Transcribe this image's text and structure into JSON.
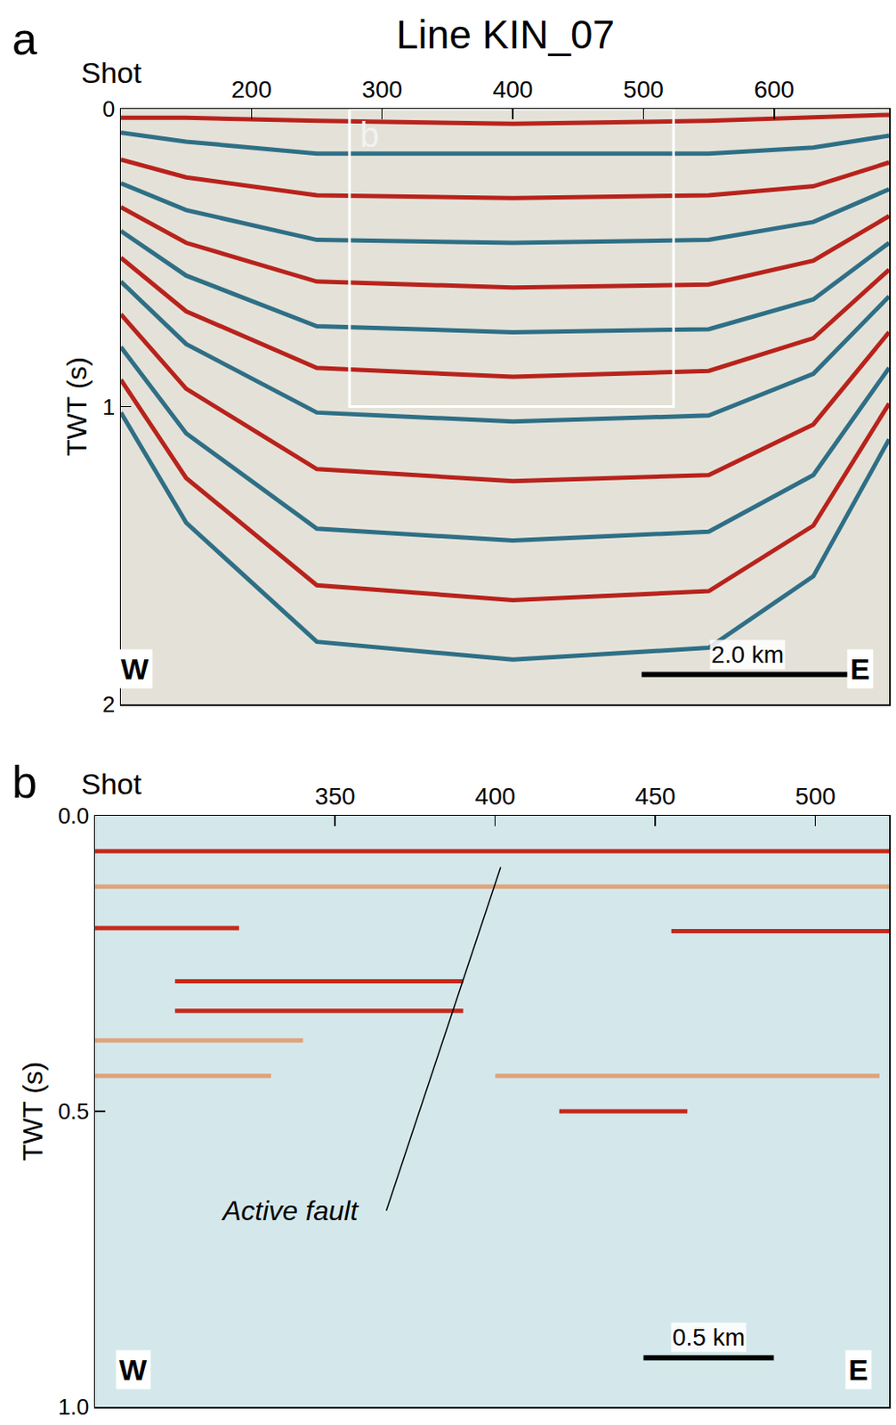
{
  "chart_data": [
    {
      "type": "line",
      "panel": "a",
      "title": "Line KIN_07",
      "x_label": "Shot",
      "y_label": "TWT (s)",
      "xlim": [
        100,
        688
      ],
      "xticks": [
        200,
        300,
        400,
        500,
        600
      ],
      "ylim": [
        0,
        2
      ],
      "yticks": [
        0,
        1,
        2
      ],
      "x": [
        100,
        150,
        250,
        400,
        550,
        630,
        688
      ],
      "series": [
        {
          "color": "#b8231c",
          "values": [
            0.03,
            0.03,
            0.04,
            0.05,
            0.04,
            0.03,
            0.02
          ]
        },
        {
          "color": "#2f6f86",
          "values": [
            0.08,
            0.11,
            0.15,
            0.15,
            0.15,
            0.13,
            0.09
          ]
        },
        {
          "color": "#b8231c",
          "values": [
            0.17,
            0.23,
            0.29,
            0.3,
            0.29,
            0.26,
            0.18
          ]
        },
        {
          "color": "#2f6f86",
          "values": [
            0.25,
            0.34,
            0.44,
            0.45,
            0.44,
            0.38,
            0.27
          ]
        },
        {
          "color": "#b8231c",
          "values": [
            0.33,
            0.45,
            0.58,
            0.6,
            0.59,
            0.51,
            0.36
          ]
        },
        {
          "color": "#2f6f86",
          "values": [
            0.41,
            0.56,
            0.73,
            0.75,
            0.74,
            0.64,
            0.45
          ]
        },
        {
          "color": "#b8231c",
          "values": [
            0.5,
            0.68,
            0.87,
            0.9,
            0.88,
            0.77,
            0.54
          ]
        },
        {
          "color": "#2f6f86",
          "values": [
            0.58,
            0.79,
            1.02,
            1.05,
            1.03,
            0.89,
            0.63
          ]
        },
        {
          "color": "#b8231c",
          "values": [
            0.69,
            0.94,
            1.21,
            1.25,
            1.23,
            1.06,
            0.75
          ]
        },
        {
          "color": "#2f6f86",
          "values": [
            0.8,
            1.09,
            1.41,
            1.45,
            1.42,
            1.23,
            0.87
          ]
        },
        {
          "color": "#b8231c",
          "values": [
            0.91,
            1.24,
            1.6,
            1.65,
            1.62,
            1.4,
            0.99
          ]
        },
        {
          "color": "#2f6f86",
          "values": [
            1.02,
            1.39,
            1.79,
            1.85,
            1.81,
            1.57,
            1.11
          ]
        }
      ],
      "inset": {
        "label": "b",
        "x": [
          275,
          523
        ],
        "y": [
          0,
          1.0
        ]
      },
      "scale_bar": {
        "label": "2.0 km",
        "x": [
          498.6,
          661
        ],
        "y": 1.9
      },
      "annotations": [
        {
          "text": "W",
          "x": 111,
          "y": 1.88
        },
        {
          "text": "E",
          "x": 666,
          "y": 1.88
        }
      ]
    },
    {
      "type": "line",
      "panel": "b",
      "x_label": "Shot",
      "y_label": "TWT (s)",
      "xlim": [
        275,
        523
      ],
      "xticks": [
        350,
        400,
        450,
        500
      ],
      "ylim": [
        0,
        1.0
      ],
      "yticks": [
        {
          "value": 0,
          "label": "0.0"
        },
        {
          "value": 0.5,
          "label": "0.5"
        },
        {
          "value": 1.0,
          "label": "1.0"
        }
      ],
      "series": [
        {
          "color": "#c42a1c",
          "x": [
            275,
            523
          ],
          "values": [
            0.06,
            0.06
          ]
        },
        {
          "color": "#e0a27a",
          "x": [
            275,
            523
          ],
          "values": [
            0.12,
            0.12
          ]
        },
        {
          "color": "#c42a1c",
          "x": [
            275,
            320
          ],
          "values": [
            0.19,
            0.19
          ]
        },
        {
          "color": "#c42a1c",
          "x": [
            455,
            523
          ],
          "values": [
            0.195,
            0.195
          ]
        },
        {
          "color": "#c42a1c",
          "x": [
            300,
            390
          ],
          "values": [
            0.28,
            0.28
          ]
        },
        {
          "color": "#c42a1c",
          "x": [
            300,
            390
          ],
          "values": [
            0.33,
            0.33
          ]
        },
        {
          "color": "#e0a27a",
          "x": [
            275,
            340
          ],
          "values": [
            0.38,
            0.38
          ]
        },
        {
          "color": "#e0a27a",
          "x": [
            275,
            330
          ],
          "values": [
            0.44,
            0.44
          ]
        },
        {
          "color": "#e0a27a",
          "x": [
            400,
            520
          ],
          "values": [
            0.44,
            0.44
          ]
        },
        {
          "color": "#c42a1c",
          "x": [
            420,
            460
          ],
          "values": [
            0.5,
            0.5
          ]
        },
        {
          "color": "#000000",
          "x": [
            401.7,
            366
          ],
          "values": [
            0.087,
            0.668
          ],
          "line_style": "fault"
        }
      ],
      "scale_bar": {
        "label": "0.5 km",
        "x": [
          446.3,
          487
        ],
        "y": 0.917
      },
      "annotations": [
        {
          "text": "Active fault",
          "x": 336,
          "y": 0.668
        },
        {
          "text": "W",
          "x": 287,
          "y": 0.937
        },
        {
          "text": "E",
          "x": 513.5,
          "y": 0.937
        }
      ]
    }
  ]
}
